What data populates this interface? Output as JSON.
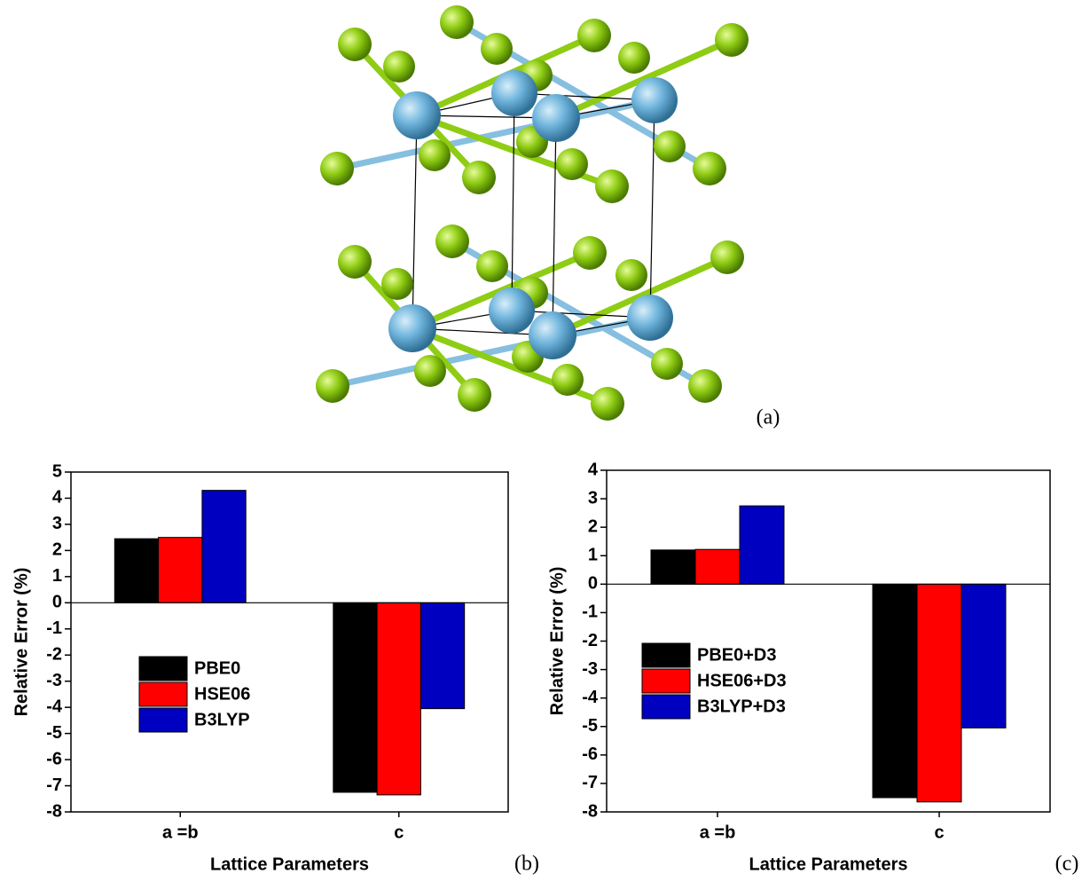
{
  "structure": {
    "panel_label": "(a)"
  },
  "chart_data": [
    {
      "type": "bar",
      "panel_label": "(b)",
      "xlabel": "Lattice Parameters",
      "ylabel": "Relative Error (%)",
      "categories": [
        "a =b",
        "c"
      ],
      "series": [
        {
          "name": "PBE0",
          "color": "#000000",
          "values": [
            2.45,
            -7.25
          ]
        },
        {
          "name": "HSE06",
          "color": "#ff0000",
          "values": [
            2.5,
            -7.35
          ]
        },
        {
          "name": "B3LYP",
          "color": "#0000c0",
          "values": [
            4.3,
            -4.05
          ]
        }
      ],
      "ylim": [
        -8,
        5
      ],
      "yticks": [
        -8,
        -7,
        -6,
        -5,
        -4,
        -3,
        -2,
        -1,
        0,
        1,
        2,
        3,
        4,
        5
      ],
      "legend": "center left"
    },
    {
      "type": "bar",
      "panel_label": "(c)",
      "xlabel": "Lattice Parameters",
      "ylabel": "Relative Error (%)",
      "categories": [
        "a =b",
        "c"
      ],
      "series": [
        {
          "name": "PBE0+D3",
          "color": "#000000",
          "values": [
            1.2,
            -7.5
          ]
        },
        {
          "name": "HSE06+D3",
          "color": "#ff0000",
          "values": [
            1.22,
            -7.65
          ]
        },
        {
          "name": "B3LYP+D3",
          "color": "#0000c0",
          "values": [
            2.75,
            -5.05
          ]
        }
      ],
      "ylim": [
        -8,
        4
      ],
      "yticks": [
        -8,
        -7,
        -6,
        -5,
        -4,
        -3,
        -2,
        -1,
        0,
        1,
        2,
        3,
        4
      ],
      "legend": "center left"
    }
  ]
}
